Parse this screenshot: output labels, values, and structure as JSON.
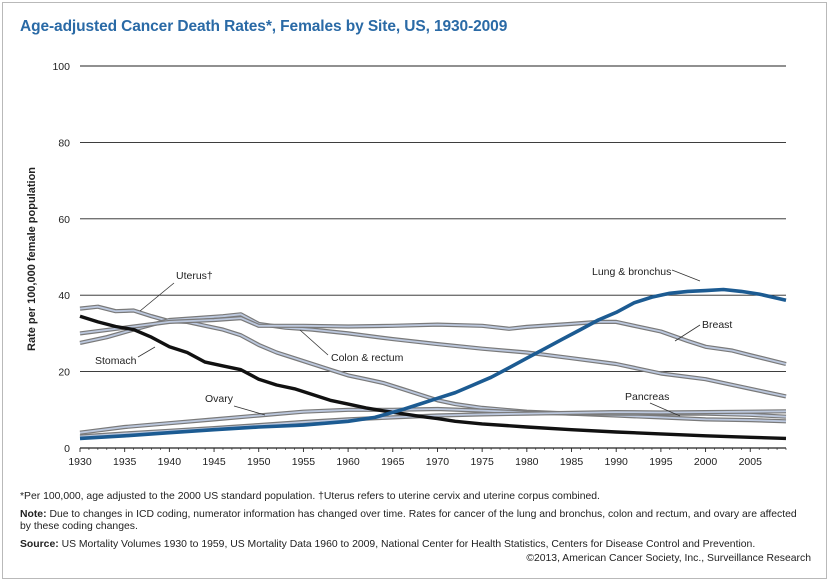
{
  "title": "Age-adjusted Cancer Death Rates*, Females by Site, US, 1930-2009",
  "footnotes": {
    "asterisk": "*Per 100,000, age adjusted to the 2000 US standard population. †Uterus refers to uterine cervix and uterine corpus combined.",
    "note_label": "Note:",
    "note_text": "Due to changes in ICD coding, numerator information has changed over time. Rates for cancer of the lung and bronchus, colon and rectum, and ovary are affected by these coding changes.",
    "source_label": "Source:",
    "source_text": "US Mortality Volumes 1930 to 1959, US Mortality Data 1960 to 2009, National Center for Health Statistics, Centers for Disease Control and Prevention.",
    "credit": "©2013, American Cancer Society, Inc., Surveillance Research"
  },
  "colors": {
    "title": "#2a6aa6",
    "lung": "#1c5b92",
    "stomach": "#111111",
    "gray_line": "#7a7a7a",
    "light_line": "#bcc8de",
    "grid": "#222222"
  },
  "chart_data": {
    "type": "line",
    "ylabel": "Rate per 100,000 female population",
    "xlabel": "",
    "xlim": [
      1930,
      2009
    ],
    "ylim": [
      0,
      100
    ],
    "xticks": [
      1930,
      1935,
      1940,
      1945,
      1950,
      1955,
      1960,
      1965,
      1970,
      1975,
      1980,
      1985,
      1990,
      1995,
      2000,
      2005
    ],
    "yticks": [
      0,
      20,
      40,
      60,
      80,
      100
    ],
    "grid": "horizontal",
    "series": [
      {
        "name": "Uterus†",
        "style": "double",
        "color": "#7a7a7a",
        "points": [
          [
            1930,
            36.5
          ],
          [
            1932,
            37
          ],
          [
            1934,
            35.8
          ],
          [
            1936,
            36
          ],
          [
            1938,
            34.5
          ],
          [
            1940,
            33.2
          ],
          [
            1942,
            33
          ],
          [
            1944,
            32
          ],
          [
            1946,
            31
          ],
          [
            1948,
            29.5
          ],
          [
            1950,
            27
          ],
          [
            1952,
            25
          ],
          [
            1954,
            23.5
          ],
          [
            1956,
            22
          ],
          [
            1958,
            20.5
          ],
          [
            1960,
            19
          ],
          [
            1962,
            18
          ],
          [
            1964,
            17
          ],
          [
            1966,
            15.5
          ],
          [
            1968,
            14
          ],
          [
            1970,
            12.5
          ],
          [
            1972,
            11.5
          ],
          [
            1975,
            10.5
          ],
          [
            1980,
            9.5
          ],
          [
            1985,
            9
          ],
          [
            1990,
            8.5
          ],
          [
            1995,
            8
          ],
          [
            2000,
            7.5
          ],
          [
            2005,
            7.3
          ],
          [
            2009,
            7
          ]
        ]
      },
      {
        "name": "Stomach",
        "style": "solid",
        "color": "#111111",
        "points": [
          [
            1930,
            34.5
          ],
          [
            1932,
            33
          ],
          [
            1934,
            31.8
          ],
          [
            1936,
            31
          ],
          [
            1938,
            29
          ],
          [
            1940,
            26.5
          ],
          [
            1942,
            25
          ],
          [
            1944,
            22.5
          ],
          [
            1946,
            21.5
          ],
          [
            1948,
            20.5
          ],
          [
            1950,
            18
          ],
          [
            1952,
            16.5
          ],
          [
            1954,
            15.5
          ],
          [
            1956,
            14
          ],
          [
            1958,
            12.5
          ],
          [
            1960,
            11.5
          ],
          [
            1962,
            10.5
          ],
          [
            1964,
            9.7
          ],
          [
            1966,
            9
          ],
          [
            1968,
            8.3
          ],
          [
            1970,
            7.7
          ],
          [
            1972,
            7
          ],
          [
            1975,
            6.3
          ],
          [
            1980,
            5.5
          ],
          [
            1985,
            4.8
          ],
          [
            1990,
            4.2
          ],
          [
            1995,
            3.7
          ],
          [
            2000,
            3.2
          ],
          [
            2005,
            2.8
          ],
          [
            2009,
            2.5
          ]
        ]
      },
      {
        "name": "Colon & rectum",
        "style": "double",
        "color": "#7a7a7a",
        "points": [
          [
            1930,
            27.5
          ],
          [
            1933,
            29
          ],
          [
            1936,
            31
          ],
          [
            1940,
            33.5
          ],
          [
            1943,
            34
          ],
          [
            1946,
            34.5
          ],
          [
            1948,
            35
          ],
          [
            1950,
            32.5
          ],
          [
            1953,
            31.5
          ],
          [
            1956,
            31
          ],
          [
            1960,
            30
          ],
          [
            1965,
            28.5
          ],
          [
            1970,
            27.2
          ],
          [
            1975,
            26
          ],
          [
            1980,
            25
          ],
          [
            1985,
            23.5
          ],
          [
            1990,
            22
          ],
          [
            1995,
            19.5
          ],
          [
            2000,
            18
          ],
          [
            2005,
            15.5
          ],
          [
            2009,
            13.5
          ]
        ]
      },
      {
        "name": "Breast",
        "style": "double",
        "color": "#7a7a7a",
        "points": [
          [
            1930,
            30
          ],
          [
            1935,
            31.5
          ],
          [
            1940,
            33
          ],
          [
            1945,
            33.5
          ],
          [
            1948,
            34
          ],
          [
            1950,
            32
          ],
          [
            1955,
            32
          ],
          [
            1960,
            31.8
          ],
          [
            1965,
            32
          ],
          [
            1970,
            32.3
          ],
          [
            1975,
            32
          ],
          [
            1978,
            31.2
          ],
          [
            1980,
            31.7
          ],
          [
            1985,
            32.5
          ],
          [
            1988,
            33
          ],
          [
            1990,
            33
          ],
          [
            1992,
            32
          ],
          [
            1995,
            30.5
          ],
          [
            1998,
            28
          ],
          [
            2000,
            26.5
          ],
          [
            2003,
            25.5
          ],
          [
            2005,
            24.3
          ],
          [
            2009,
            22
          ]
        ]
      },
      {
        "name": "Lung & bronchus",
        "style": "bold",
        "color": "#1c5b92",
        "points": [
          [
            1930,
            2.5
          ],
          [
            1935,
            3.2
          ],
          [
            1940,
            4
          ],
          [
            1945,
            4.8
          ],
          [
            1950,
            5.5
          ],
          [
            1955,
            6
          ],
          [
            1960,
            7
          ],
          [
            1963,
            8
          ],
          [
            1966,
            10
          ],
          [
            1968,
            11.5
          ],
          [
            1970,
            13
          ],
          [
            1972,
            14.5
          ],
          [
            1974,
            16.5
          ],
          [
            1976,
            18.5
          ],
          [
            1978,
            21
          ],
          [
            1980,
            23.5
          ],
          [
            1982,
            26
          ],
          [
            1984,
            28.5
          ],
          [
            1986,
            31
          ],
          [
            1988,
            33.5
          ],
          [
            1990,
            35.5
          ],
          [
            1992,
            38
          ],
          [
            1994,
            39.5
          ],
          [
            1996,
            40.5
          ],
          [
            1998,
            41
          ],
          [
            2000,
            41.2
          ],
          [
            2002,
            41.5
          ],
          [
            2004,
            41
          ],
          [
            2006,
            40.3
          ],
          [
            2009,
            38.7
          ]
        ]
      },
      {
        "name": "Ovary",
        "style": "double",
        "color": "#7a7a7a",
        "points": [
          [
            1930,
            4
          ],
          [
            1935,
            5.5
          ],
          [
            1940,
            6.5
          ],
          [
            1945,
            7.5
          ],
          [
            1950,
            8.5
          ],
          [
            1955,
            9.5
          ],
          [
            1960,
            10
          ],
          [
            1965,
            10
          ],
          [
            1970,
            10.2
          ],
          [
            1975,
            9.8
          ],
          [
            1980,
            9.3
          ],
          [
            1985,
            9
          ],
          [
            1990,
            9
          ],
          [
            1995,
            9
          ],
          [
            2000,
            9
          ],
          [
            2005,
            8.7
          ],
          [
            2009,
            8.2
          ]
        ]
      },
      {
        "name": "Pancreas",
        "style": "double",
        "color": "#7a7a7a",
        "points": [
          [
            1930,
            3
          ],
          [
            1935,
            3.8
          ],
          [
            1940,
            4.5
          ],
          [
            1945,
            5.2
          ],
          [
            1950,
            6
          ],
          [
            1955,
            6.8
          ],
          [
            1960,
            7.5
          ],
          [
            1965,
            8
          ],
          [
            1970,
            8.5
          ],
          [
            1975,
            8.8
          ],
          [
            1980,
            9
          ],
          [
            1985,
            9.2
          ],
          [
            1990,
            9.4
          ],
          [
            1995,
            9.3
          ],
          [
            2000,
            9.4
          ],
          [
            2005,
            9.5
          ],
          [
            2009,
            9.6
          ]
        ]
      }
    ],
    "annotations": [
      {
        "text": "Uterus†",
        "series": "Uterus†"
      },
      {
        "text": "Stomach",
        "series": "Stomach"
      },
      {
        "text": "Colon & rectum",
        "series": "Colon & rectum"
      },
      {
        "text": "Breast",
        "series": "Breast"
      },
      {
        "text": "Lung & bronchus",
        "series": "Lung & bronchus"
      },
      {
        "text": "Ovary",
        "series": "Ovary"
      },
      {
        "text": "Pancreas",
        "series": "Pancreas"
      }
    ]
  }
}
